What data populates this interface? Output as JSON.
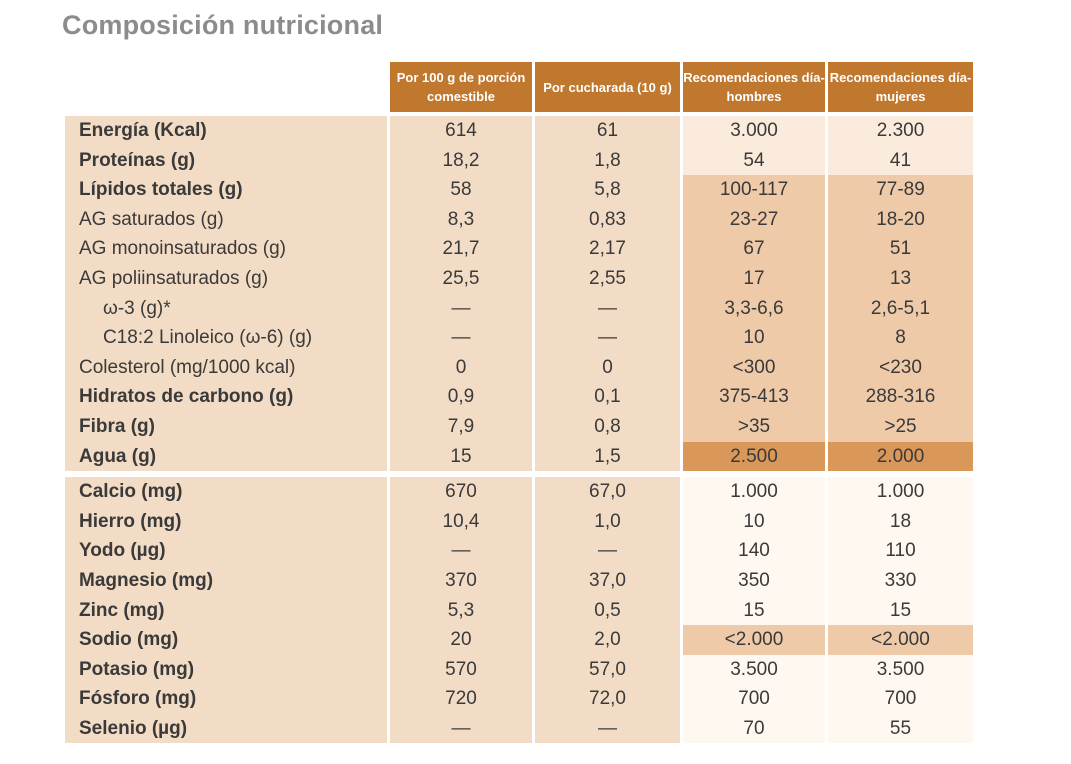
{
  "title": "Composición nutricional",
  "headers": [
    "Por 100 g de porción comestible",
    "Por cucharada (10 g)",
    "Recomendaciones día-hombres",
    "Recomendaciones día-mujeres"
  ],
  "colors": {
    "header": "#c0772e",
    "cell_base": "#f3dcc5",
    "cell_light": "#fbebdc",
    "cell_medium": "#efcaa8",
    "cell_dark": "#d9975a"
  },
  "group1": [
    {
      "label": "Energía (Kcal)",
      "v100": "614",
      "vcuch": "61",
      "hombres": "3.000",
      "mujeres": "2.300",
      "bold": true,
      "shade": "light"
    },
    {
      "label": "Proteínas (g)",
      "v100": "18,2",
      "vcuch": "1,8",
      "hombres": "54",
      "mujeres": "41",
      "bold": true,
      "shade": "light"
    },
    {
      "label": "Lípidos totales (g)",
      "v100": "58",
      "vcuch": "5,8",
      "hombres": "100-117",
      "mujeres": "77-89",
      "bold": true,
      "shade": "medium"
    },
    {
      "label": "AG saturados (g)",
      "v100": "8,3",
      "vcuch": "0,83",
      "hombres": "23-27",
      "mujeres": "18-20",
      "bold": false,
      "shade": "medium"
    },
    {
      "label": "AG monoinsaturados (g)",
      "v100": "21,7",
      "vcuch": "2,17",
      "hombres": "67",
      "mujeres": "51",
      "bold": false,
      "shade": "medium"
    },
    {
      "label": "AG poliinsaturados (g)",
      "v100": "25,5",
      "vcuch": "2,55",
      "hombres": "17",
      "mujeres": "13",
      "bold": false,
      "shade": "medium"
    },
    {
      "label": "ω-3 (g)*",
      "v100": "—",
      "vcuch": "—",
      "hombres": "3,3-6,6",
      "mujeres": "2,6-5,1",
      "bold": false,
      "indent": true,
      "shade": "medium"
    },
    {
      "label": "C18:2 Linoleico (ω-6) (g)",
      "v100": "—",
      "vcuch": "—",
      "hombres": "10",
      "mujeres": "8",
      "bold": false,
      "indent": true,
      "shade": "medium"
    },
    {
      "label": "Colesterol (mg/1000 kcal)",
      "v100": "0",
      "vcuch": "0",
      "hombres": "<300",
      "mujeres": "<230",
      "bold": false,
      "shade": "medium"
    },
    {
      "label": "Hidratos de carbono (g)",
      "v100": "0,9",
      "vcuch": "0,1",
      "hombres": "375-413",
      "mujeres": "288-316",
      "bold": true,
      "shade": "medium"
    },
    {
      "label": "Fibra (g)",
      "v100": "7,9",
      "vcuch": "0,8",
      "hombres": ">35",
      "mujeres": ">25",
      "bold": true,
      "shade": "medium"
    },
    {
      "label": "Agua (g)",
      "v100": "15",
      "vcuch": "1,5",
      "hombres": "2.500",
      "mujeres": "2.000",
      "bold": true,
      "shade": "dark"
    }
  ],
  "group2": [
    {
      "label": "Calcio (mg)",
      "v100": "670",
      "vcuch": "67,0",
      "hombres": "1.000",
      "mujeres": "1.000",
      "bold": true,
      "shade": "white"
    },
    {
      "label": "Hierro (mg)",
      "v100": "10,4",
      "vcuch": "1,0",
      "hombres": "10",
      "mujeres": "18",
      "bold": true,
      "shade": "white"
    },
    {
      "label": "Yodo (µg)",
      "v100": "—",
      "vcuch": "—",
      "hombres": "140",
      "mujeres": "110",
      "bold": true,
      "shade": "white"
    },
    {
      "label": "Magnesio (mg)",
      "v100": "370",
      "vcuch": "37,0",
      "hombres": "350",
      "mujeres": "330",
      "bold": true,
      "shade": "white"
    },
    {
      "label": "Zinc (mg)",
      "v100": "5,3",
      "vcuch": "0,5",
      "hombres": "15",
      "mujeres": "15",
      "bold": true,
      "shade": "white"
    },
    {
      "label": "Sodio (mg)",
      "v100": "20",
      "vcuch": "2,0",
      "hombres": "<2.000",
      "mujeres": "<2.000",
      "bold": true,
      "shade": "medium"
    },
    {
      "label": "Potasio (mg)",
      "v100": "570",
      "vcuch": "57,0",
      "hombres": "3.500",
      "mujeres": "3.500",
      "bold": true,
      "shade": "white"
    },
    {
      "label": "Fósforo (mg)",
      "v100": "720",
      "vcuch": "72,0",
      "hombres": "700",
      "mujeres": "700",
      "bold": true,
      "shade": "white"
    },
    {
      "label": "Selenio (µg)",
      "v100": "—",
      "vcuch": "—",
      "hombres": "70",
      "mujeres": "55",
      "bold": true,
      "shade": "white"
    }
  ]
}
